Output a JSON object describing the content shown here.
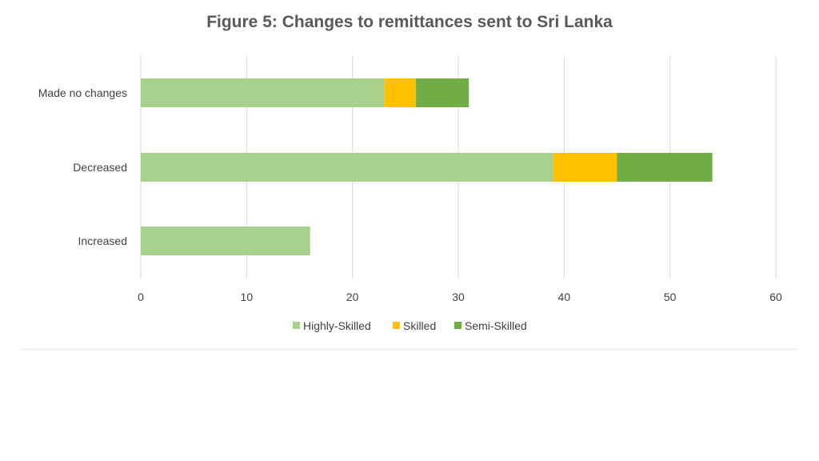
{
  "chart_data": {
    "type": "bar",
    "orientation": "horizontal",
    "stacked": true,
    "title": "Figure 5: Changes to remittances sent to Sri Lanka",
    "categories": [
      "Made no changes",
      "Decreased",
      "Increased"
    ],
    "series": [
      {
        "name": "Highly-Skilled",
        "color": "#a9d18e",
        "values": [
          23,
          39,
          16
        ]
      },
      {
        "name": "Skilled",
        "color": "#ffc000",
        "values": [
          3,
          6,
          0
        ]
      },
      {
        "name": "Semi-Skilled",
        "color": "#70ad47",
        "values": [
          5,
          9,
          0
        ]
      }
    ],
    "xlim": [
      0,
      60
    ],
    "xticks": [
      0,
      10,
      20,
      30,
      40,
      50,
      60
    ],
    "grid": "vertical",
    "legend": "bottom",
    "xlabel": "",
    "ylabel": ""
  }
}
